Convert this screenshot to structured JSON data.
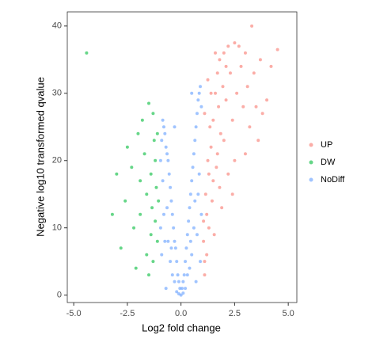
{
  "chart_data": {
    "type": "scatter",
    "x_label": "Log2 fold change",
    "y_label": "Negative log10 transformed qvalue",
    "xlim": [
      -5.3,
      5.4
    ],
    "ylim": [
      -1.1,
      42.1
    ],
    "xticks": [
      {
        "value": -5,
        "label": "-5.0"
      },
      {
        "value": -2.5,
        "label": "-2.5"
      },
      {
        "value": 0,
        "label": "0.0"
      },
      {
        "value": 2.5,
        "label": "2.5"
      },
      {
        "value": 5,
        "label": "5.0"
      }
    ],
    "yticks": [
      0,
      10,
      20,
      30,
      40
    ],
    "series": [
      {
        "name": "UP",
        "color": "#F8766D",
        "x": [
          1.1,
          1.2,
          1.3,
          1.4,
          1.5,
          1.6,
          1.7,
          1.8,
          2.0,
          2.2,
          2.5,
          2.7,
          3.0,
          3.3,
          3.7,
          4.5,
          1.05,
          1.15,
          1.25,
          1.35,
          1.45,
          1.55,
          1.65,
          1.75,
          1.85,
          1.95,
          2.1,
          2.3,
          2.4,
          2.6,
          2.8,
          2.9,
          3.1,
          3.2,
          3.4,
          3.6,
          3.8,
          4.2,
          1.1,
          1.2,
          1.3,
          1.5,
          1.7,
          2.0,
          2.2,
          2.5,
          1.9,
          1.4,
          1.6,
          2.1,
          3.5,
          4.0,
          1.05,
          1.1,
          1.25,
          2.4,
          1.8,
          3.0
        ],
        "values": [
          5,
          12,
          18,
          22,
          26,
          30,
          33,
          35,
          36,
          37,
          37.5,
          37,
          36,
          40,
          35,
          36.5,
          8,
          15,
          20,
          25,
          14,
          9,
          19,
          28,
          24,
          31,
          29,
          33,
          26,
          30,
          34,
          28,
          31,
          25,
          33,
          23,
          27,
          34,
          3,
          6,
          10,
          17,
          21,
          23,
          18,
          20,
          13,
          30,
          36,
          34,
          28,
          29,
          11,
          27,
          32,
          15,
          16,
          21
        ]
      },
      {
        "name": "DW",
        "color": "#00BA38",
        "x": [
          -4.4,
          -1.5,
          -1.8,
          -1.3,
          -1.1,
          -2.0,
          -2.5,
          -3.0,
          -1.2,
          -1.4,
          -1.6,
          -1.9,
          -2.2,
          -1.1,
          -1.3,
          -1.5,
          -2.6,
          -2.8,
          -1.7,
          -1.05,
          -1.2,
          -1.4,
          -2.3,
          -1.9,
          -1.6,
          -2.1,
          -3.2,
          -1.15,
          -1.25,
          -1.35
        ],
        "values": [
          36,
          28.5,
          26,
          27,
          24,
          24,
          22,
          18,
          20,
          18,
          15,
          12,
          10,
          8,
          5,
          3,
          14,
          7,
          21,
          14,
          11,
          9,
          19,
          17,
          6,
          4,
          12,
          16,
          23,
          13
        ]
      },
      {
        "name": "NoDiff",
        "color": "#619CFF",
        "x": [
          0,
          0.05,
          -0.05,
          0.1,
          -0.1,
          0.15,
          -0.15,
          0.2,
          -0.2,
          0.25,
          -0.25,
          0.3,
          -0.3,
          0.35,
          -0.35,
          0.4,
          -0.4,
          0.45,
          -0.45,
          0.5,
          -0.5,
          0.55,
          -0.55,
          0.6,
          -0.6,
          0.65,
          -0.65,
          0.7,
          -0.7,
          0.75,
          -0.75,
          0.8,
          -0.8,
          0.85,
          -0.85,
          0.9,
          -0.9,
          0.95,
          -0.95,
          0.6,
          -0.6,
          0.8,
          -0.8,
          0.9,
          -0.9,
          0.4,
          -0.4,
          0.7,
          -0.7,
          0.95,
          -0.95,
          0.5,
          -0.3,
          0.2,
          -0.2,
          0.1,
          -0.1,
          0.3,
          -0.3,
          0.5,
          -0.5,
          0.75,
          -0.75,
          0.85,
          -0.85,
          0.65,
          -0.65,
          0.45,
          -0.45
        ],
        "values": [
          0,
          1,
          1,
          2,
          2,
          3,
          3,
          5,
          5,
          7,
          7,
          9,
          8,
          11,
          10,
          13,
          12,
          15,
          14,
          17,
          16,
          19,
          18,
          21,
          20,
          23,
          21,
          25,
          22,
          27,
          24,
          29,
          25,
          30,
          26,
          31,
          23,
          28,
          20,
          10,
          8,
          15,
          12,
          5,
          6,
          4,
          3,
          2,
          1,
          12,
          10,
          30,
          25,
          1,
          0.5,
          0.3,
          0.2,
          3,
          2,
          6,
          5,
          9,
          8,
          18,
          17,
          14,
          13,
          8,
          7
        ]
      }
    ]
  }
}
